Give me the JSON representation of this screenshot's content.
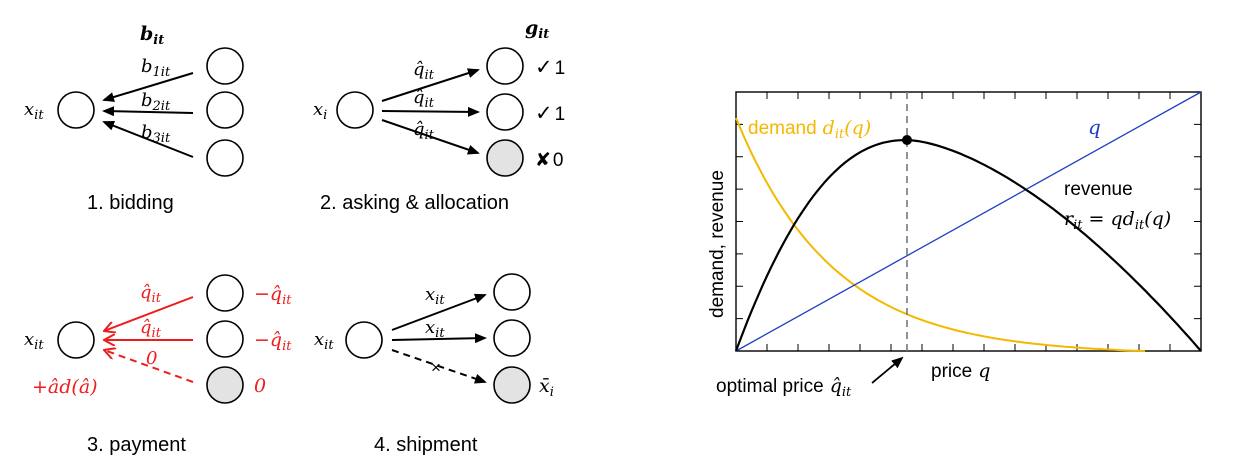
{
  "colors": {
    "black": "#000000",
    "red": "#ee1c1c",
    "gold": "#f5b800",
    "blue": "#1f3ec6",
    "gray_fill": "#e3e3e3"
  },
  "panel1": {
    "caption": "1. bidding",
    "header": "b",
    "header_sub": "it",
    "left_node": "x",
    "left_node_sub": "it",
    "edges": [
      {
        "label": "b",
        "sub": "1it"
      },
      {
        "label": "b",
        "sub": "2it"
      },
      {
        "label": "b",
        "sub": "3it"
      }
    ]
  },
  "panel2": {
    "caption": "2. asking & allocation",
    "header": "g",
    "header_sub": "it",
    "left_node": "x",
    "left_node_sub": "i",
    "edges": [
      {
        "label": "q̂",
        "sub": "it"
      },
      {
        "label": "q̂",
        "sub": "it"
      },
      {
        "label": "q̂",
        "sub": "it"
      }
    ],
    "outcomes": [
      {
        "mark": "✓",
        "value": "1"
      },
      {
        "mark": "✓",
        "value": "1"
      },
      {
        "mark": "✘",
        "value": "0"
      }
    ]
  },
  "panel3": {
    "caption": "3. payment",
    "left_node": "x",
    "left_node_sub": "it",
    "edges": [
      {
        "label": "q̂",
        "sub": "it"
      },
      {
        "label": "q̂",
        "sub": "it"
      },
      {
        "label": "0",
        "sub": ""
      }
    ],
    "right_labels": [
      {
        "text": "−q̂",
        "sub": "it"
      },
      {
        "text": "−q̂",
        "sub": "it"
      },
      {
        "text": "0",
        "sub": ""
      }
    ],
    "bottom_left": "+âd(â)"
  },
  "panel4": {
    "caption": "4. shipment",
    "left_node": "x",
    "left_node_sub": "it",
    "edges": [
      {
        "label": "x",
        "sub": "it"
      },
      {
        "label": "x",
        "sub": "it"
      }
    ],
    "cross_mark": "×",
    "right_label": "x̄",
    "right_label_sub": "i"
  },
  "chart_data": {
    "type": "line",
    "xlabel": "price q",
    "ylabel": "demand, revenue",
    "series": [
      {
        "name": "demand d_it(q)",
        "color": "#f5b800",
        "shape": "decreasing-convex"
      },
      {
        "name": "q",
        "color": "#1f3ec6",
        "shape": "linear"
      },
      {
        "name": "revenue r_it = q d_it(q)",
        "color": "#000000",
        "shape": "concave-peak"
      }
    ],
    "annotations": {
      "demand_label": "demand",
      "demand_math": "d",
      "demand_math_sub": "it",
      "demand_math_tail": "(q)",
      "q_label": "q",
      "revenue_label": "revenue",
      "revenue_formula": "r",
      "revenue_formula_sub": "it",
      "revenue_formula_tail": " = qd",
      "revenue_formula_sub2": "it",
      "revenue_formula_tail2": "(q)",
      "optimal_price": "optimal price",
      "optimal_price_math": "q̂",
      "optimal_price_sub": "it",
      "price_label": "price",
      "price_var": "q"
    },
    "grid": false
  }
}
